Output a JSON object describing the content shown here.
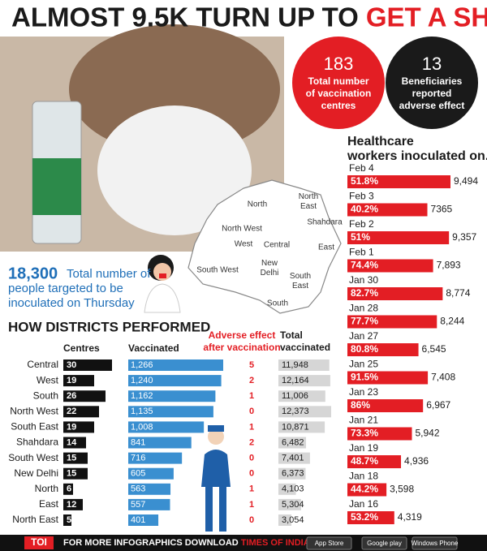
{
  "title": {
    "part1": "ALMOST 9.5K TURN UP TO",
    "part2": "GET A SHOT"
  },
  "stats": [
    {
      "number": "183",
      "label": [
        "Total number",
        "of vaccination",
        "centres"
      ]
    },
    {
      "number": "13",
      "label": [
        "Beneficiaries",
        "reported",
        "adverse effect"
      ]
    }
  ],
  "targeted": {
    "number": "18,300",
    "label": [
      "Total number of",
      "people targeted to be",
      "inoculated on Thursday"
    ]
  },
  "map": {
    "regions": [
      "North",
      "North East",
      "Shahdara",
      "North West",
      "West",
      "Central",
      "East",
      "South West",
      "New Delhi",
      "South East",
      "South"
    ]
  },
  "healthcare": {
    "title": [
      "Healthcare",
      "workers inoculated on..."
    ],
    "rows": [
      {
        "date": "Feb 4",
        "percent": "51.8%",
        "count": 9494,
        "count_label": "9,494"
      },
      {
        "date": "Feb 3",
        "percent": "40.2%",
        "count": 7365,
        "count_label": "7365"
      },
      {
        "date": "Feb 2",
        "percent": "51%",
        "count": 9357,
        "count_label": "9,357"
      },
      {
        "date": "Feb 1",
        "percent": "74.4%",
        "count": 7893,
        "count_label": "7,893"
      },
      {
        "date": "Jan 30",
        "percent": "82.7%",
        "count": 8774,
        "count_label": "8,774"
      },
      {
        "date": "Jan 28",
        "percent": "77.7%",
        "count": 8244,
        "count_label": "8,244"
      },
      {
        "date": "Jan 27",
        "percent": "80.8%",
        "count": 6545,
        "count_label": "6,545"
      },
      {
        "date": "Jan 25",
        "percent": "91.5%",
        "count": 7408,
        "count_label": "7,408"
      },
      {
        "date": "Jan 23",
        "percent": "86%",
        "count": 6967,
        "count_label": "6,967"
      },
      {
        "date": "Jan 21",
        "percent": "73.3%",
        "count": 5942,
        "count_label": "5,942"
      },
      {
        "date": "Jan 19",
        "percent": "48.7%",
        "count": 4936,
        "count_label": "4,936"
      },
      {
        "date": "Jan 18",
        "percent": "44.2%",
        "count": 3598,
        "count_label": "3,598"
      },
      {
        "date": "Jan 16",
        "percent": "53.2%",
        "count": 4319,
        "count_label": "4,319"
      }
    ]
  },
  "districts": {
    "title": "HOW DISTRICTS PERFORMED",
    "headers": {
      "centres": "Centres",
      "vaccinated": "Vaccinated",
      "adverse": [
        "Adverse effect",
        "after vaccination"
      ],
      "total": [
        "Total",
        "vaccinated"
      ]
    },
    "rows": [
      {
        "name": "Central",
        "centres": 30,
        "vaccinated": 1266,
        "vaccinated_label": "1,266",
        "adverse": 5,
        "total": 11948,
        "total_label": "11,948"
      },
      {
        "name": "West",
        "centres": 19,
        "vaccinated": 1240,
        "vaccinated_label": "1,240",
        "adverse": 2,
        "total": 12164,
        "total_label": "12,164"
      },
      {
        "name": "South",
        "centres": 26,
        "vaccinated": 1162,
        "vaccinated_label": "1,162",
        "adverse": 1,
        "total": 11006,
        "total_label": "11,006"
      },
      {
        "name": "North West",
        "centres": 22,
        "vaccinated": 1135,
        "vaccinated_label": "1,135",
        "adverse": 0,
        "total": 12373,
        "total_label": "12,373"
      },
      {
        "name": "South East",
        "centres": 19,
        "vaccinated": 1008,
        "vaccinated_label": "1,008",
        "adverse": 1,
        "total": 10871,
        "total_label": "10,871"
      },
      {
        "name": "Shahdara",
        "centres": 14,
        "vaccinated": 841,
        "vaccinated_label": "841",
        "adverse": 2,
        "total": 6482,
        "total_label": "6,482"
      },
      {
        "name": "South West",
        "centres": 15,
        "vaccinated": 716,
        "vaccinated_label": "716",
        "adverse": 0,
        "total": 7401,
        "total_label": "7,401"
      },
      {
        "name": "New Delhi",
        "centres": 15,
        "vaccinated": 605,
        "vaccinated_label": "605",
        "adverse": 0,
        "total": 6373,
        "total_label": "6,373"
      },
      {
        "name": "North",
        "centres": 6,
        "vaccinated": 563,
        "vaccinated_label": "563",
        "adverse": 1,
        "total": 4103,
        "total_label": "4,103"
      },
      {
        "name": "East",
        "centres": 12,
        "vaccinated": 557,
        "vaccinated_label": "557",
        "adverse": 1,
        "total": 5304,
        "total_label": "5,304"
      },
      {
        "name": "North East",
        "centres": 5,
        "vaccinated": 401,
        "vaccinated_label": "401",
        "adverse": 0,
        "total": 3054,
        "total_label": "3,054"
      }
    ]
  },
  "footer": {
    "brand": "TOI",
    "text": "FOR MORE INFOGRAPHICS DOWNLOAD",
    "app": "TIMES OF INDIA APP",
    "badges": [
      "App Store",
      "Google play",
      "Windows Phone"
    ]
  }
}
